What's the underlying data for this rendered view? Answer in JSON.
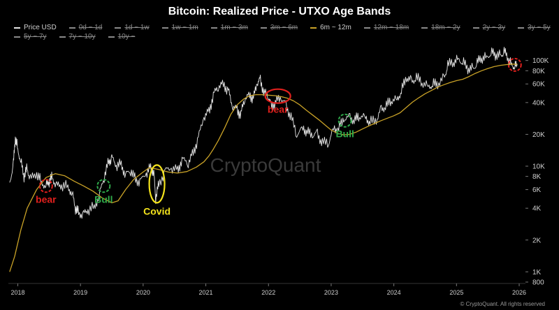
{
  "chart_data": {
    "type": "line",
    "title": "Bitcoin: Realized Price - UTXO Age Bands",
    "y_scale": "log",
    "ylim": [
      800,
      150000
    ],
    "xlim": [
      2017.85,
      2026.1
    ],
    "x_ticks": [
      "2018",
      "2019",
      "2020",
      "2021",
      "2022",
      "2023",
      "2024",
      "2025",
      "2026"
    ],
    "y_ticks": [
      "100K",
      "80K",
      "60K",
      "40K",
      "20K",
      "10K",
      "8K",
      "6K",
      "4K",
      "2K",
      "1K",
      "800"
    ],
    "legend": [
      {
        "label": "Price USD",
        "color": "#e6e6e6",
        "visible": true
      },
      {
        "label": "0d ~ 1d",
        "color": "#8a8a8a",
        "visible": false
      },
      {
        "label": "1d ~ 1w",
        "color": "#8a8a8a",
        "visible": false
      },
      {
        "label": "1w ~ 1m",
        "color": "#8a8a8a",
        "visible": false
      },
      {
        "label": "1m ~ 3m",
        "color": "#8a8a8a",
        "visible": false
      },
      {
        "label": "3m ~ 6m",
        "color": "#8a8a8a",
        "visible": false
      },
      {
        "label": "6m ~ 12m",
        "color": "#c9a227",
        "visible": true
      },
      {
        "label": "12m ~ 18m",
        "color": "#8a8a8a",
        "visible": false
      },
      {
        "label": "18m ~ 2y",
        "color": "#8a8a8a",
        "visible": false
      },
      {
        "label": "2y ~ 3y",
        "color": "#8a8a8a",
        "visible": false
      },
      {
        "label": "3y ~ 5y",
        "color": "#8a8a8a",
        "visible": false
      },
      {
        "label": "5y ~ 7y",
        "color": "#8a8a8a",
        "visible": false
      },
      {
        "label": "7y ~ 10y",
        "color": "#8a8a8a",
        "visible": false
      },
      {
        "label": "10y ~",
        "color": "#8a8a8a",
        "visible": false
      }
    ],
    "series": [
      {
        "name": "Price USD",
        "color": "#e6e6e6",
        "points": [
          [
            2017.87,
            7000
          ],
          [
            2017.93,
            10500
          ],
          [
            2017.96,
            18500
          ],
          [
            2018.0,
            14500
          ],
          [
            2018.05,
            11000
          ],
          [
            2018.1,
            8000
          ],
          [
            2018.15,
            9500
          ],
          [
            2018.2,
            7500
          ],
          [
            2018.3,
            8500
          ],
          [
            2018.38,
            7000
          ],
          [
            2018.45,
            6500
          ],
          [
            2018.5,
            7200
          ],
          [
            2018.55,
            7800
          ],
          [
            2018.62,
            6500
          ],
          [
            2018.7,
            6500
          ],
          [
            2018.8,
            6400
          ],
          [
            2018.87,
            5500
          ],
          [
            2018.92,
            4000
          ],
          [
            2018.97,
            3600
          ],
          [
            2019.05,
            3500
          ],
          [
            2019.12,
            3800
          ],
          [
            2019.22,
            4100
          ],
          [
            2019.3,
            5300
          ],
          [
            2019.38,
            8000
          ],
          [
            2019.45,
            11000
          ],
          [
            2019.5,
            12000
          ],
          [
            2019.57,
            10000
          ],
          [
            2019.65,
            10500
          ],
          [
            2019.72,
            8200
          ],
          [
            2019.8,
            9200
          ],
          [
            2019.88,
            7400
          ],
          [
            2019.96,
            7200
          ],
          [
            2020.05,
            8500
          ],
          [
            2020.12,
            9800
          ],
          [
            2020.17,
            8800
          ],
          [
            2020.2,
            5000
          ],
          [
            2020.25,
            6800
          ],
          [
            2020.35,
            9000
          ],
          [
            2020.45,
            9500
          ],
          [
            2020.55,
            9200
          ],
          [
            2020.62,
            11500
          ],
          [
            2020.72,
            10800
          ],
          [
            2020.8,
            13500
          ],
          [
            2020.88,
            18500
          ],
          [
            2020.97,
            29000
          ],
          [
            2021.05,
            33000
          ],
          [
            2021.12,
            47000
          ],
          [
            2021.2,
            57000
          ],
          [
            2021.28,
            60000
          ],
          [
            2021.36,
            52000
          ],
          [
            2021.42,
            37000
          ],
          [
            2021.5,
            34000
          ],
          [
            2021.56,
            31000
          ],
          [
            2021.62,
            44000
          ],
          [
            2021.7,
            47000
          ],
          [
            2021.76,
            44000
          ],
          [
            2021.82,
            61000
          ],
          [
            2021.87,
            66000
          ],
          [
            2021.93,
            49000
          ],
          [
            2022.0,
            46000
          ],
          [
            2022.05,
            37000
          ],
          [
            2022.12,
            41000
          ],
          [
            2022.2,
            44000
          ],
          [
            2022.28,
            38000
          ],
          [
            2022.36,
            29000
          ],
          [
            2022.45,
            20000
          ],
          [
            2022.55,
            23000
          ],
          [
            2022.62,
            21000
          ],
          [
            2022.7,
            19500
          ],
          [
            2022.78,
            20500
          ],
          [
            2022.86,
            16500
          ],
          [
            2022.96,
            16700
          ],
          [
            2023.04,
            23000
          ],
          [
            2023.12,
            22500
          ],
          [
            2023.2,
            28000
          ],
          [
            2023.3,
            29000
          ],
          [
            2023.38,
            27000
          ],
          [
            2023.45,
            30000
          ],
          [
            2023.55,
            29000
          ],
          [
            2023.62,
            26000
          ],
          [
            2023.72,
            27000
          ],
          [
            2023.8,
            35000
          ],
          [
            2023.88,
            37000
          ],
          [
            2023.96,
            42000
          ],
          [
            2024.05,
            43000
          ],
          [
            2024.12,
            51000
          ],
          [
            2024.2,
            69000
          ],
          [
            2024.28,
            64000
          ],
          [
            2024.36,
            68000
          ],
          [
            2024.45,
            62000
          ],
          [
            2024.55,
            57000
          ],
          [
            2024.62,
            59000
          ],
          [
            2024.7,
            60000
          ],
          [
            2024.8,
            68000
          ],
          [
            2024.86,
            90000
          ],
          [
            2024.95,
            96000
          ],
          [
            2025.03,
            104000
          ],
          [
            2025.1,
            96000
          ],
          [
            2025.18,
            84000
          ],
          [
            2025.26,
            83000
          ],
          [
            2025.33,
            95000
          ],
          [
            2025.4,
            105000
          ],
          [
            2025.48,
            108000
          ],
          [
            2025.55,
            118000
          ],
          [
            2025.62,
            114000
          ],
          [
            2025.7,
            110000
          ],
          [
            2025.76,
            122000
          ],
          [
            2025.82,
            104000
          ],
          [
            2025.88,
            91000
          ],
          [
            2025.93,
            88000
          ],
          [
            2025.97,
            90000
          ]
        ]
      },
      {
        "name": "6m ~ 12m",
        "color": "#c9a227",
        "points": [
          [
            2017.87,
            1000
          ],
          [
            2017.95,
            1400
          ],
          [
            2018.05,
            2500
          ],
          [
            2018.15,
            4000
          ],
          [
            2018.3,
            6000
          ],
          [
            2018.45,
            7800
          ],
          [
            2018.6,
            8500
          ],
          [
            2018.75,
            8100
          ],
          [
            2018.9,
            7200
          ],
          [
            2019.05,
            6500
          ],
          [
            2019.2,
            5800
          ],
          [
            2019.35,
            5000
          ],
          [
            2019.5,
            4500
          ],
          [
            2019.6,
            4700
          ],
          [
            2019.72,
            6000
          ],
          [
            2019.85,
            7500
          ],
          [
            2020.0,
            8800
          ],
          [
            2020.1,
            9700
          ],
          [
            2020.25,
            9300
          ],
          [
            2020.4,
            8800
          ],
          [
            2020.55,
            8600
          ],
          [
            2020.7,
            8900
          ],
          [
            2020.85,
            9800
          ],
          [
            2020.97,
            11000
          ],
          [
            2021.05,
            12500
          ],
          [
            2021.12,
            14500
          ],
          [
            2021.2,
            17500
          ],
          [
            2021.3,
            23000
          ],
          [
            2021.4,
            31000
          ],
          [
            2021.5,
            38000
          ],
          [
            2021.6,
            43000
          ],
          [
            2021.7,
            46500
          ],
          [
            2021.8,
            47500
          ],
          [
            2021.9,
            47500
          ],
          [
            2022.0,
            47000
          ],
          [
            2022.1,
            46500
          ],
          [
            2022.2,
            45500
          ],
          [
            2022.3,
            44000
          ],
          [
            2022.4,
            41500
          ],
          [
            2022.5,
            38000
          ],
          [
            2022.6,
            34000
          ],
          [
            2022.72,
            30000
          ],
          [
            2022.82,
            27000
          ],
          [
            2022.92,
            24000
          ],
          [
            2023.0,
            22000
          ],
          [
            2023.1,
            20500
          ],
          [
            2023.2,
            19800
          ],
          [
            2023.3,
            20000
          ],
          [
            2023.4,
            21000
          ],
          [
            2023.5,
            22500
          ],
          [
            2023.6,
            24000
          ],
          [
            2023.7,
            25500
          ],
          [
            2023.8,
            27000
          ],
          [
            2023.9,
            28500
          ],
          [
            2024.0,
            30000
          ],
          [
            2024.1,
            32000
          ],
          [
            2024.2,
            36000
          ],
          [
            2024.3,
            40500
          ],
          [
            2024.4,
            44500
          ],
          [
            2024.5,
            48500
          ],
          [
            2024.6,
            52000
          ],
          [
            2024.7,
            56000
          ],
          [
            2024.8,
            59000
          ],
          [
            2024.9,
            62000
          ],
          [
            2025.0,
            64500
          ],
          [
            2025.1,
            66500
          ],
          [
            2025.2,
            70500
          ],
          [
            2025.3,
            75500
          ],
          [
            2025.4,
            80000
          ],
          [
            2025.5,
            84000
          ],
          [
            2025.6,
            87500
          ],
          [
            2025.7,
            90000
          ],
          [
            2025.8,
            91500
          ],
          [
            2025.9,
            92500
          ],
          [
            2025.97,
            92000
          ]
        ]
      }
    ],
    "annotations": [
      {
        "label": "bear",
        "color": "#e0201d",
        "x": 2018.45,
        "y": 6500,
        "marker": "circle"
      },
      {
        "label": "Bull",
        "color": "#2faa4a",
        "x": 2019.37,
        "y": 6500,
        "marker": "circle"
      },
      {
        "label": "Covid",
        "color": "#f2e21c",
        "x": 2020.22,
        "y": 6800,
        "marker": "ellipse"
      },
      {
        "label": "bear",
        "color": "#e0201d",
        "x": 2022.15,
        "y": 46000,
        "marker": "ellipse"
      },
      {
        "label": "Bull",
        "color": "#2faa4a",
        "x": 2023.22,
        "y": 27000,
        "marker": "circle"
      },
      {
        "label": "",
        "color": "#e0201d",
        "x": 2025.93,
        "y": 91000,
        "marker": "circle"
      }
    ]
  },
  "watermark": "CryptoQuant",
  "copyright": "© CryptoQuant. All rights reserved"
}
